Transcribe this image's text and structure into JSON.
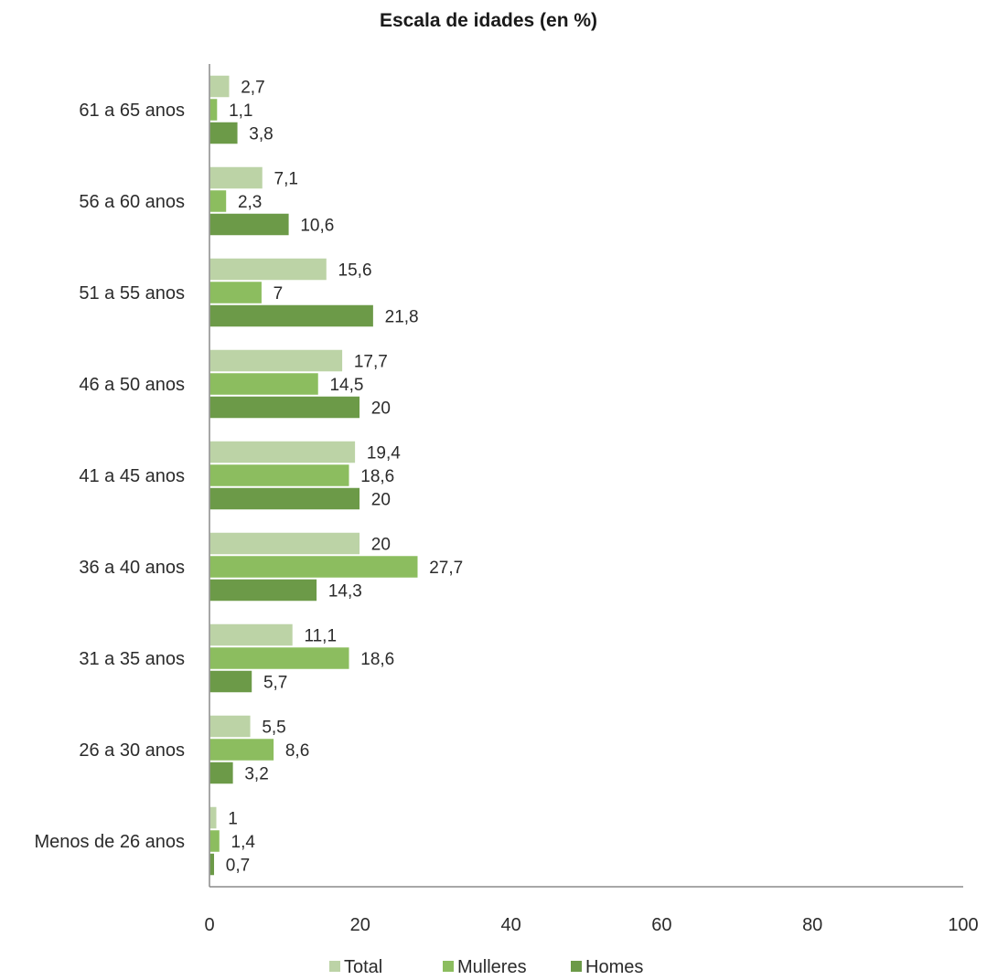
{
  "chart_data": {
    "type": "bar",
    "orientation": "horizontal",
    "title": "Escala de idades (en %)",
    "xlabel": "",
    "ylabel": "",
    "xlim": [
      0,
      100
    ],
    "x_ticks": [
      "0",
      "20",
      "40",
      "60",
      "80",
      "100"
    ],
    "grid": false,
    "legend_position": "bottom",
    "categories": [
      "61 a 65 anos",
      "56 a 60 anos",
      "51 a 55 anos",
      "46 a 50 anos",
      "41 a 45 anos",
      "36 a 40 anos",
      "31 a 35 anos",
      "26 a 30 anos",
      "Menos de 26 anos"
    ],
    "series": [
      {
        "name": "Total",
        "color": "#bcd3a6",
        "values": [
          2.7,
          7.1,
          15.6,
          17.7,
          19.4,
          20,
          11.1,
          5.5,
          1
        ],
        "labels": [
          "2,7",
          "7,1",
          "15,6",
          "17,7",
          "19,4",
          "20",
          "11,1",
          "5,5",
          "1"
        ]
      },
      {
        "name": "Mulleres",
        "color": "#8cbd5f",
        "values": [
          1.1,
          2.3,
          7,
          14.5,
          18.6,
          27.7,
          18.6,
          8.6,
          1.4
        ],
        "labels": [
          "1,1",
          "2,3",
          "7",
          "14,5",
          "18,6",
          "27,7",
          "18,6",
          "8,6",
          "1,4"
        ]
      },
      {
        "name": "Homes",
        "color": "#6c9a48",
        "values": [
          3.8,
          10.6,
          21.8,
          20,
          20,
          14.3,
          5.7,
          3.2,
          0.7
        ],
        "labels": [
          "3,8",
          "10,6",
          "21,8",
          "20",
          "20",
          "14,3",
          "5,7",
          "3,2",
          "0,7"
        ]
      }
    ]
  }
}
